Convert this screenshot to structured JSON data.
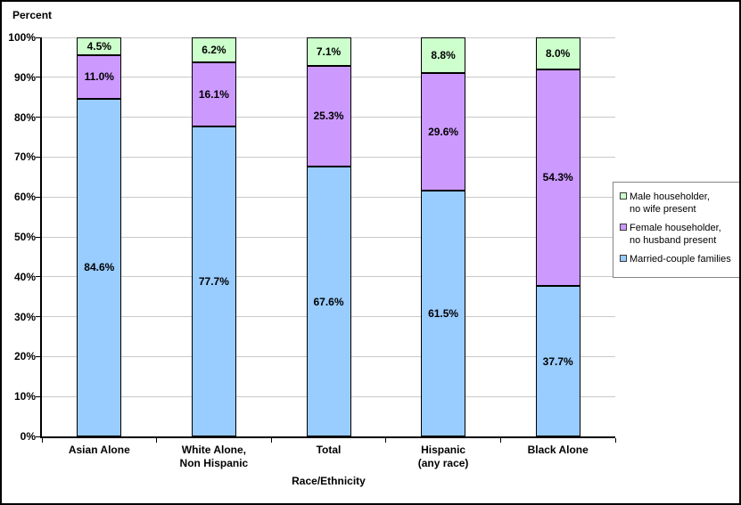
{
  "chart_data": {
    "type": "bar",
    "stacked": true,
    "percent_stacked": true,
    "title": "",
    "ylabel": "Percent",
    "xlabel": "Race/Ethnicity",
    "ylim": [
      0,
      100
    ],
    "yticks": [
      0,
      10,
      20,
      30,
      40,
      50,
      60,
      70,
      80,
      90,
      100
    ],
    "ytick_labels": [
      "0%",
      "10%",
      "20%",
      "30%",
      "40%",
      "50%",
      "60%",
      "70%",
      "80%",
      "90%",
      "100%"
    ],
    "grid": true,
    "legend_position": "right",
    "categories": [
      "Asian Alone",
      "White Alone,\nNon Hispanic",
      "Total",
      "Hispanic\n(any race)",
      "Black Alone"
    ],
    "series": [
      {
        "name": "Married-couple families",
        "color": "#99CCFF",
        "values": [
          84.6,
          77.7,
          67.6,
          61.5,
          37.7
        ],
        "labels": [
          "84.6%",
          "77.7%",
          "67.6%",
          "61.5%",
          "37.7%"
        ]
      },
      {
        "name": "Female householder, no husband present",
        "color": "#CC99FF",
        "values": [
          11.0,
          16.1,
          25.3,
          29.6,
          54.3
        ],
        "labels": [
          "11.0%",
          "16.1%",
          "25.3%",
          "29.6%",
          "54.3%"
        ]
      },
      {
        "name": "Male householder, no wife present",
        "color": "#CCFFCC",
        "values": [
          4.5,
          6.2,
          7.1,
          8.8,
          8.0
        ],
        "labels": [
          "4.5%",
          "6.2%",
          "7.1%",
          "8.8%",
          "8.0%"
        ]
      }
    ],
    "legend": [
      {
        "label": "Male householder,\nno wife present",
        "color": "#CCFFCC"
      },
      {
        "label": "Female householder,\nno husband present",
        "color": "#CC99FF"
      },
      {
        "label": "Married-couple families",
        "color": "#99CCFF"
      }
    ]
  },
  "colors": {
    "bar_border": "#000000",
    "gridline": "#c9c9c9",
    "axis": "#000000",
    "legend_border": "#848484",
    "text": "#000000"
  }
}
